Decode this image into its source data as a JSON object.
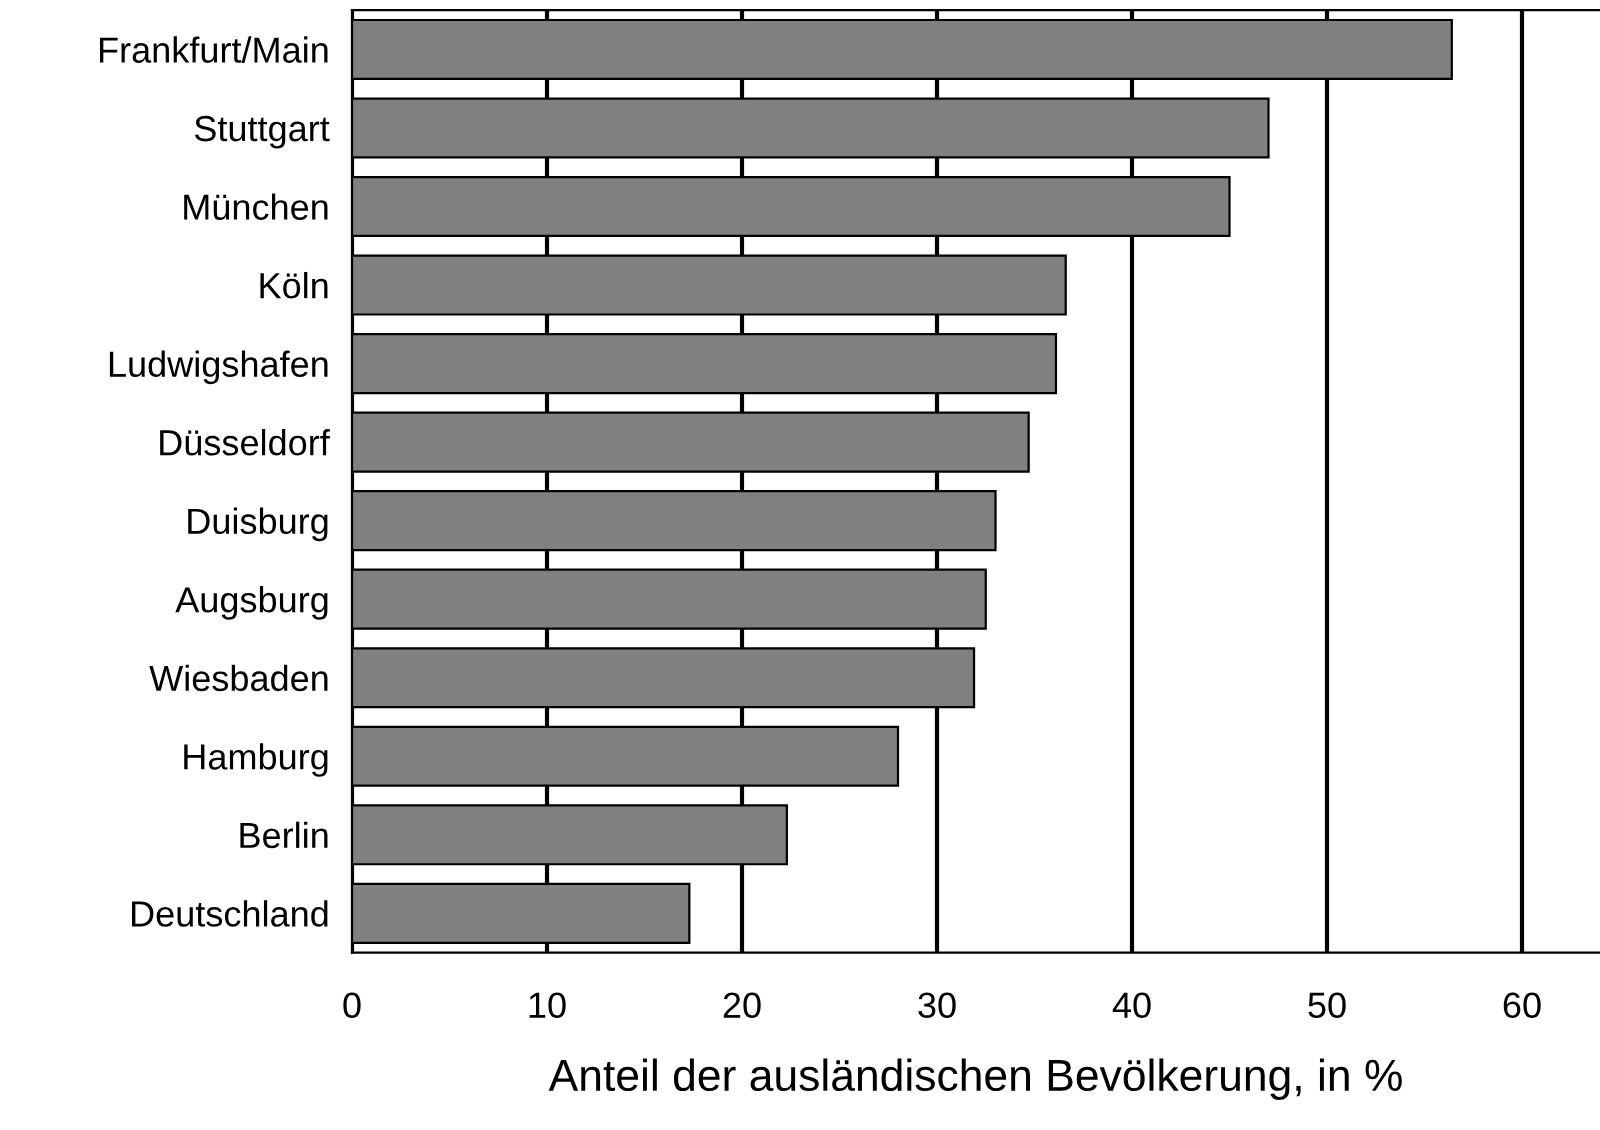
{
  "chart_data": {
    "type": "bar",
    "orientation": "horizontal",
    "xlabel": "Anteil der ausländischen Bevölkerung, in %",
    "categories": [
      "Frankfurt/Main",
      "Stuttgart",
      "München",
      "Köln",
      "Ludwigshafen",
      "Düsseldorf",
      "Duisburg",
      "Augsburg",
      "Wiesbaden",
      "Hamburg",
      "Berlin",
      "Deutschland"
    ],
    "values": [
      56.4,
      47.0,
      45.0,
      36.6,
      36.1,
      34.7,
      33.0,
      32.5,
      31.9,
      28.0,
      22.3,
      17.3
    ],
    "color": "#808080",
    "xlim": [
      0,
      64
    ],
    "xticks": [
      0,
      10,
      20,
      30,
      40,
      50,
      60
    ],
    "grid": "x",
    "legend": false
  }
}
